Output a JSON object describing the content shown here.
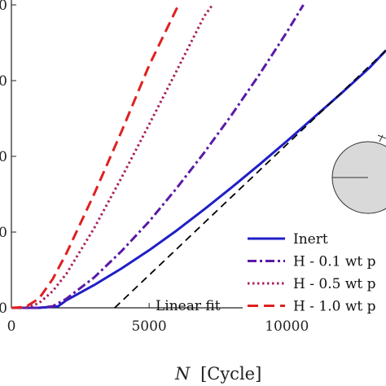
{
  "chart_data": {
    "type": "line",
    "xlabel_italic": "N",
    "xlabel_rest": "[Cycle]",
    "xlim": [
      0,
      13600
    ],
    "ylim": [
      0,
      4.0
    ],
    "xticks": [
      0,
      5000,
      10000
    ],
    "xtick_labels": [
      "0",
      "5000",
      "10000"
    ],
    "yticks": [
      0,
      1,
      2,
      3,
      4
    ],
    "ytick_labels": [
      "0",
      "0",
      "0",
      "0",
      "0"
    ],
    "grid": false,
    "legend_position": "bottom-right",
    "series": [
      {
        "name": "Inert",
        "color": "#1f1fc8",
        "style": "solid",
        "x": [
          0,
          1000,
          1700,
          2000,
          3000,
          4000,
          5000,
          6000,
          7000,
          8000,
          9000,
          10000,
          11000,
          12000,
          13000,
          13600
        ],
        "y": [
          0,
          0,
          0.02,
          0.1,
          0.3,
          0.52,
          0.76,
          1.02,
          1.3,
          1.59,
          1.89,
          2.2,
          2.52,
          2.84,
          3.17,
          3.4
        ]
      },
      {
        "name": "H - 0.1 wt p",
        "color": "#5a1aa8",
        "style": "dashdot",
        "x": [
          0,
          500,
          1000,
          1500,
          2000,
          3000,
          4000,
          5000,
          6000,
          7000,
          8000,
          9000,
          10000,
          10600
        ],
        "y": [
          0,
          0,
          0,
          0.02,
          0.12,
          0.4,
          0.75,
          1.14,
          1.58,
          2.05,
          2.55,
          3.08,
          3.64,
          4.0
        ]
      },
      {
        "name": "H - 0.5 wt p",
        "color": "#a8205c",
        "style": "dotted",
        "x": [
          0,
          500,
          1000,
          1500,
          2000,
          3000,
          4000,
          5000,
          6000,
          7000,
          7300
        ],
        "y": [
          0,
          0,
          0.06,
          0.22,
          0.45,
          1.05,
          1.72,
          2.42,
          3.13,
          3.85,
          4.0
        ]
      },
      {
        "name": "H - 1.0 wt p",
        "color": "#e02020",
        "style": "dashed",
        "x": [
          0,
          500,
          1000,
          1500,
          2000,
          3000,
          4000,
          5000,
          6000,
          6200
        ],
        "y": [
          0,
          0.01,
          0.12,
          0.38,
          0.72,
          1.5,
          2.33,
          3.2,
          3.95,
          4.0
        ]
      }
    ],
    "linear_fit": {
      "label": "Linear fit",
      "color": "#000000",
      "style": "dashed",
      "x": [
        3750,
        13600
      ],
      "y": [
        0,
        3.4
      ]
    }
  }
}
